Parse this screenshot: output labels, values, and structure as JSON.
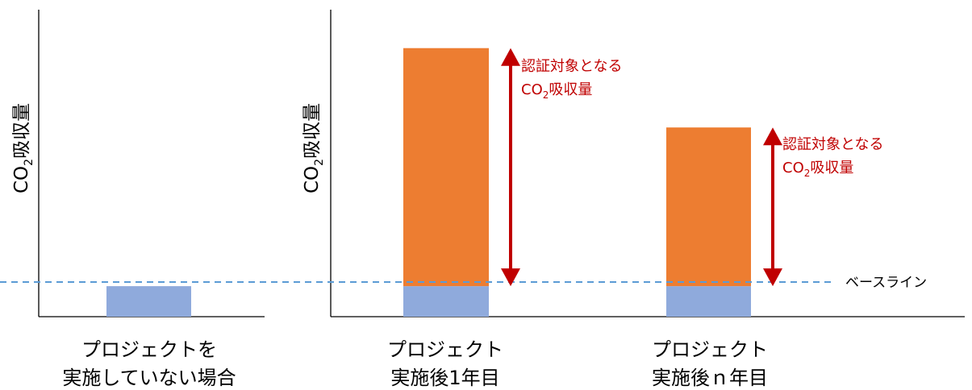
{
  "panels": [
    {
      "ylabel_main": "CO",
      "ylabel_sub": "2",
      "ylabel_rest": "吸収量",
      "caption_line1": "プロジェクトを",
      "caption_line2": "実施していない場合"
    },
    {
      "ylabel_main": "CO",
      "ylabel_sub": "2",
      "ylabel_rest": "吸収量",
      "bars": [
        {
          "caption_line1": "プロジェクト",
          "caption_line2": "実施後1年目",
          "annotation_line1": "認証対象となる",
          "annotation_line2_main": "CO",
          "annotation_line2_sub": "2",
          "annotation_line2_rest": "吸収量"
        },
        {
          "caption_line1": "プロジェクト",
          "caption_line2": "実施後ｎ年目",
          "annotation_line1": "認証対象となる",
          "annotation_line2_main": "CO",
          "annotation_line2_sub": "2",
          "annotation_line2_rest": "吸収量"
        }
      ]
    }
  ],
  "baseline_label": "ベースライン",
  "colors": {
    "baseline_fill": "#8faadc",
    "increase_fill": "#ed7d31",
    "arrow": "#c00000",
    "baseline_line": "#5b9bd5",
    "annotation_text": "#c00000"
  },
  "chart_data": {
    "type": "bar",
    "categories": [
      "プロジェクトを実施していない場合",
      "プロジェクト実施後1年目",
      "プロジェクト実施後ｎ年目"
    ],
    "series": [
      {
        "name": "ベースライン",
        "values": [
          1,
          1,
          1
        ]
      },
      {
        "name": "認証対象となるCO2吸収量",
        "values": [
          0,
          7.8,
          5.2
        ]
      }
    ],
    "ylim": [
      0,
      9.4
    ]
  }
}
